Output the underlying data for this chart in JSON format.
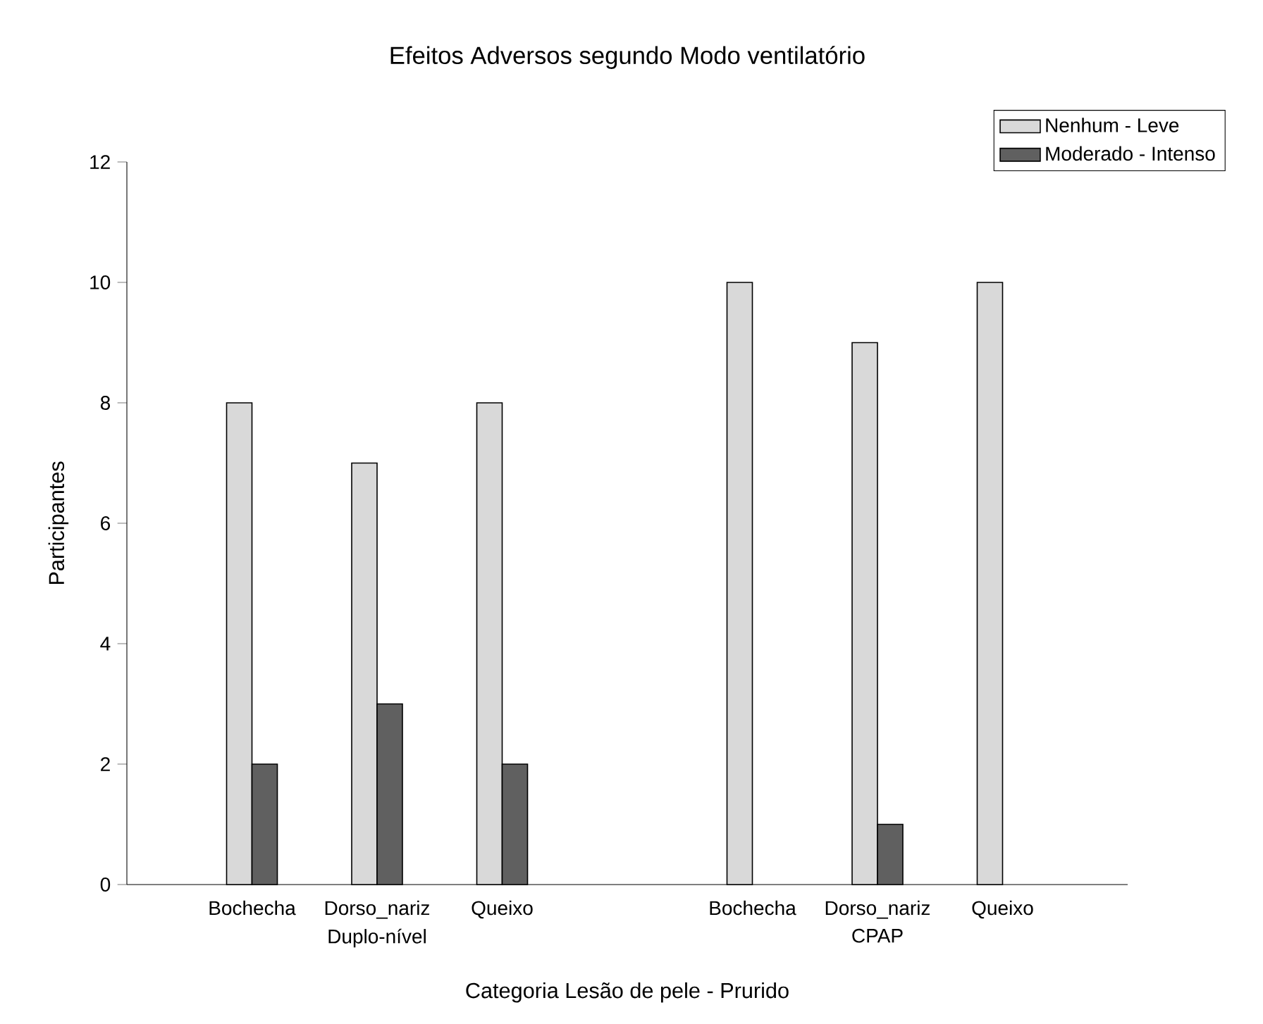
{
  "chart_data": {
    "type": "bar",
    "title": "Efeitos Adversos segundo Modo ventilatório",
    "xlabel": "Categoria Lesão de pele - Prurido",
    "ylabel": "Participantes",
    "categories": [
      "Bochecha",
      "Dorso_nariz",
      "Queixo",
      null,
      "Bochecha",
      "Dorso_nariz",
      "Queixo"
    ],
    "series": [
      {
        "name": "Nenhum - Leve",
        "color": "#d9d9d9",
        "values": [
          8,
          7,
          8,
          null,
          10,
          9,
          10
        ]
      },
      {
        "name": "Moderado - Intenso",
        "color": "#606060",
        "values": [
          2,
          3,
          2,
          null,
          0,
          1,
          0
        ]
      }
    ],
    "annotations": [
      "Duplo-nível",
      "CPAP"
    ],
    "ylim": [
      0,
      12
    ],
    "yticks": [
      0,
      2,
      4,
      6,
      8,
      10,
      12
    ],
    "grid": false,
    "legend": "top right"
  }
}
